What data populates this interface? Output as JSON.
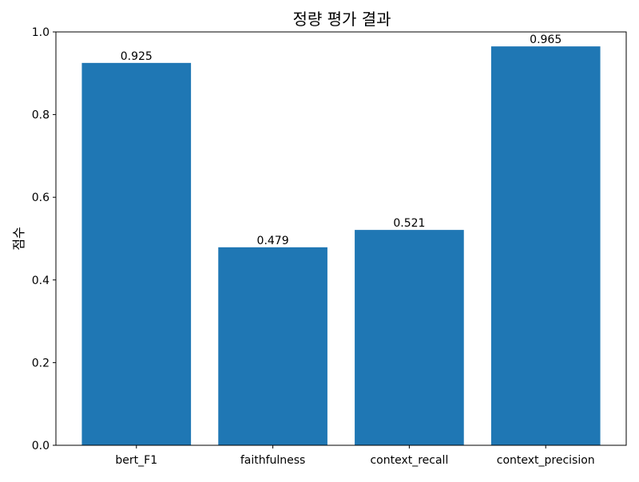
{
  "chart_data": {
    "type": "bar",
    "title": "정량 평가 결과",
    "xlabel": "",
    "ylabel": "점수",
    "categories": [
      "bert_F1",
      "faithfulness",
      "context_recall",
      "context_precision"
    ],
    "values": [
      0.925,
      0.479,
      0.521,
      0.965
    ],
    "data_labels": [
      "0.925",
      "0.479",
      "0.521",
      "0.965"
    ],
    "ylim": [
      0,
      1.0
    ],
    "yticks": [
      0.0,
      0.2,
      0.4,
      0.6,
      0.8,
      1.0
    ],
    "ytick_labels": [
      "0.0",
      "0.2",
      "0.4",
      "0.6",
      "0.8",
      "1.0"
    ],
    "grid": false,
    "bar_color": "#1f77b4"
  }
}
